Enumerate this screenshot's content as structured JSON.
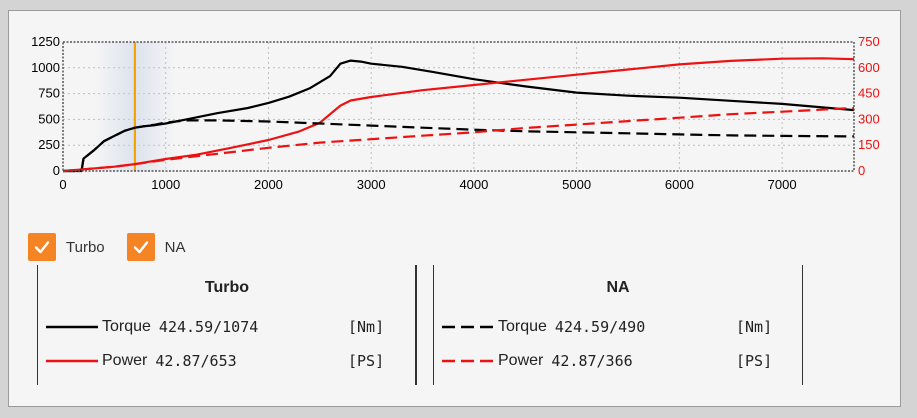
{
  "colors": {
    "torque": "#000000",
    "power": "#ee1111",
    "cursor": "#f5a300",
    "checkbox": "#f48424",
    "grid": "#bdbdbd"
  },
  "chart_data": {
    "type": "line",
    "xlim": [
      0,
      7700
    ],
    "x_ticks": [
      0,
      1000,
      2000,
      3000,
      4000,
      5000,
      6000,
      7000
    ],
    "y_left": {
      "range": [
        0,
        1250
      ],
      "ticks": [
        0,
        250,
        500,
        750,
        1000,
        1250
      ],
      "color": "#000000"
    },
    "y_right": {
      "range": [
        0,
        750
      ],
      "ticks": [
        0,
        150,
        300,
        450,
        600,
        750
      ],
      "color": "#ee1111"
    },
    "grid": true,
    "cursor_rpm": 700,
    "series": [
      {
        "name": "Turbo Torque",
        "axis": "left",
        "style": "solid",
        "color": "#000000",
        "points": [
          [
            0,
            0
          ],
          [
            180,
            0
          ],
          [
            200,
            120
          ],
          [
            300,
            200
          ],
          [
            400,
            290
          ],
          [
            500,
            340
          ],
          [
            600,
            390
          ],
          [
            700,
            420
          ],
          [
            800,
            435
          ],
          [
            900,
            445
          ],
          [
            1000,
            460
          ],
          [
            1200,
            500
          ],
          [
            1500,
            560
          ],
          [
            1800,
            610
          ],
          [
            2000,
            660
          ],
          [
            2200,
            720
          ],
          [
            2400,
            800
          ],
          [
            2600,
            920
          ],
          [
            2700,
            1040
          ],
          [
            2800,
            1070
          ],
          [
            2900,
            1060
          ],
          [
            3000,
            1040
          ],
          [
            3300,
            1010
          ],
          [
            3600,
            960
          ],
          [
            4000,
            890
          ],
          [
            4500,
            820
          ],
          [
            5000,
            760
          ],
          [
            5500,
            730
          ],
          [
            6000,
            710
          ],
          [
            6500,
            680
          ],
          [
            7000,
            650
          ],
          [
            7700,
            590
          ]
        ]
      },
      {
        "name": "Turbo Power",
        "axis": "right",
        "style": "solid",
        "color": "#ee1111",
        "points": [
          [
            0,
            0
          ],
          [
            200,
            10
          ],
          [
            500,
            25
          ],
          [
            700,
            40
          ],
          [
            1000,
            70
          ],
          [
            1300,
            95
          ],
          [
            1600,
            130
          ],
          [
            2000,
            180
          ],
          [
            2300,
            230
          ],
          [
            2500,
            280
          ],
          [
            2600,
            330
          ],
          [
            2700,
            380
          ],
          [
            2800,
            410
          ],
          [
            3000,
            430
          ],
          [
            3500,
            470
          ],
          [
            4000,
            500
          ],
          [
            4500,
            530
          ],
          [
            5000,
            560
          ],
          [
            5500,
            590
          ],
          [
            6000,
            620
          ],
          [
            6500,
            640
          ],
          [
            7000,
            653
          ],
          [
            7400,
            655
          ],
          [
            7700,
            650
          ]
        ]
      },
      {
        "name": "NA Torque",
        "axis": "left",
        "style": "dashed",
        "color": "#000000",
        "points": [
          [
            0,
            0
          ],
          [
            180,
            0
          ],
          [
            200,
            120
          ],
          [
            300,
            200
          ],
          [
            400,
            290
          ],
          [
            500,
            340
          ],
          [
            600,
            390
          ],
          [
            700,
            420
          ],
          [
            800,
            435
          ],
          [
            900,
            450
          ],
          [
            1000,
            470
          ],
          [
            1200,
            490
          ],
          [
            1500,
            490
          ],
          [
            2000,
            480
          ],
          [
            2500,
            460
          ],
          [
            3000,
            440
          ],
          [
            3500,
            420
          ],
          [
            4000,
            400
          ],
          [
            4500,
            385
          ],
          [
            5000,
            375
          ],
          [
            5500,
            365
          ],
          [
            6000,
            355
          ],
          [
            6500,
            345
          ],
          [
            7000,
            340
          ],
          [
            7700,
            335
          ]
        ]
      },
      {
        "name": "NA Power",
        "axis": "right",
        "style": "dashed",
        "color": "#ee1111",
        "points": [
          [
            0,
            0
          ],
          [
            200,
            10
          ],
          [
            500,
            25
          ],
          [
            700,
            40
          ],
          [
            1000,
            65
          ],
          [
            1500,
            100
          ],
          [
            2000,
            135
          ],
          [
            2500,
            165
          ],
          [
            3000,
            185
          ],
          [
            3500,
            205
          ],
          [
            4000,
            225
          ],
          [
            4500,
            250
          ],
          [
            5000,
            270
          ],
          [
            5500,
            290
          ],
          [
            6000,
            310
          ],
          [
            6500,
            330
          ],
          [
            7000,
            345
          ],
          [
            7700,
            366
          ]
        ]
      }
    ]
  },
  "checkboxes": [
    {
      "label": "Turbo",
      "checked": true
    },
    {
      "label": "NA",
      "checked": true
    }
  ],
  "legend": {
    "turbo": {
      "title": "Turbo",
      "torque": {
        "name": "Torque",
        "value": "424.59/1074",
        "unit": "[Nm]"
      },
      "power": {
        "name": "Power",
        "value": "42.87/653",
        "unit": "[PS]"
      }
    },
    "na": {
      "title": "NA",
      "torque": {
        "name": "Torque",
        "value": "424.59/490",
        "unit": "[Nm]"
      },
      "power": {
        "name": "Power",
        "value": "42.87/366",
        "unit": "[PS]"
      }
    }
  }
}
